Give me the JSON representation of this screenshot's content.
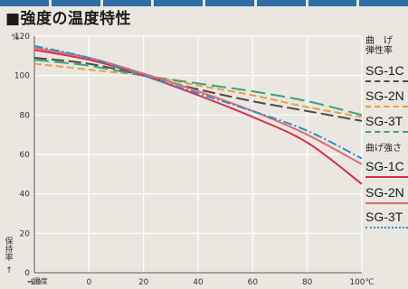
{
  "title": "■強度の温度特性",
  "legend": {
    "group1_title_line1": "曲　げ",
    "group1_title_line2": "弾性率",
    "group2_title": "曲げ強さ",
    "items1": [
      "SG-1C",
      "SG-2N",
      "SG-3T"
    ],
    "items2": [
      "SG-1C",
      "SG-2N",
      "SG-3T"
    ]
  },
  "y_axis_extra": {
    "unit": "%",
    "side_label": "保持率",
    "arrow": "↑"
  },
  "x_axis_extra": {
    "label": "→温度",
    "unit": "100℃"
  },
  "colors": {
    "background": "#e9e7df",
    "grid": "#ffffff",
    "strip": "#2f6ea6"
  },
  "chart_data": {
    "type": "line",
    "title": "強度の温度特性",
    "xlabel": "温度",
    "ylabel": "保持率",
    "xlim": [
      -20,
      100
    ],
    "ylim": [
      0,
      120
    ],
    "x_ticks": [
      "-20",
      "0",
      "20",
      "40",
      "60",
      "80",
      "100℃"
    ],
    "y_ticks": [
      "0",
      "20",
      "40",
      "60",
      "80",
      "100",
      "120"
    ],
    "grid": true,
    "legend_position": "right",
    "series": [
      {
        "name": "SG-1C",
        "group": "曲げ弾性率",
        "color": "#4a4a4a",
        "dash": "14,5",
        "x": [
          -20,
          0,
          20,
          40,
          60,
          80,
          100
        ],
        "y": [
          109,
          106,
          100,
          93,
          87,
          82,
          77
        ]
      },
      {
        "name": "SG-2N",
        "group": "曲げ弾性率",
        "color": "#e8a040",
        "dash": "8,4",
        "x": [
          -20,
          0,
          20,
          40,
          60,
          80,
          100
        ],
        "y": [
          106,
          103,
          100,
          95,
          90,
          84,
          79
        ]
      },
      {
        "name": "SG-3T",
        "group": "曲げ弾性率",
        "color": "#3aa37a",
        "dash": "16,6",
        "x": [
          -20,
          0,
          20,
          40,
          60,
          80,
          100
        ],
        "y": [
          108,
          105,
          100,
          96,
          92,
          87,
          80
        ]
      },
      {
        "name": "SG-1C",
        "group": "曲げ強さ",
        "color": "#d82e4a",
        "dash": "",
        "x": [
          -20,
          0,
          20,
          40,
          60,
          80,
          100
        ],
        "y": [
          113,
          108,
          100,
          90,
          79,
          66,
          45
        ]
      },
      {
        "name": "SG-2N",
        "group": "曲げ強さ",
        "color": "#e56a6f",
        "dash": "",
        "x": [
          -20,
          0,
          20,
          40,
          60,
          80,
          100
        ],
        "y": [
          114,
          109,
          101,
          92,
          82,
          70,
          55
        ]
      },
      {
        "name": "SG-3T",
        "group": "曲げ強さ",
        "color": "#2d8fd0",
        "dash": "10,3,2,3",
        "x": [
          -20,
          0,
          20,
          40,
          60,
          80,
          100
        ],
        "y": [
          115,
          109,
          100,
          91,
          82,
          72,
          58
        ]
      }
    ]
  }
}
